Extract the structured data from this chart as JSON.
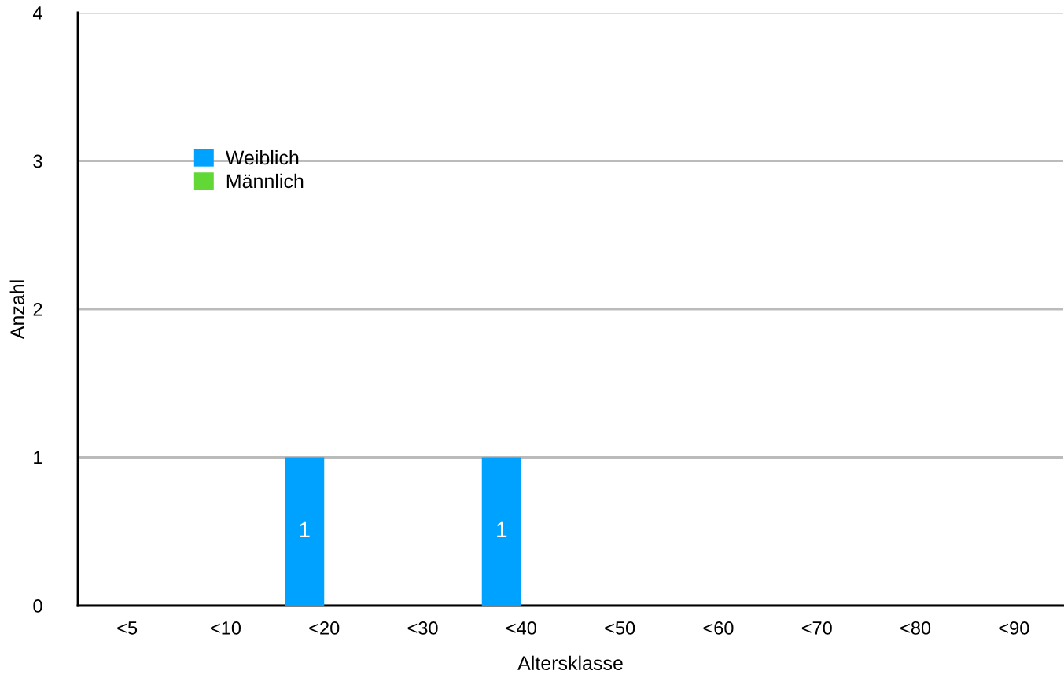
{
  "chart_data": {
    "type": "bar",
    "xlabel": "Altersklasse",
    "ylabel": "Anzahl",
    "categories": [
      "<5",
      "<10",
      "<20",
      "<30",
      "<40",
      "<50",
      "<60",
      "<70",
      "<80",
      "<90"
    ],
    "series": [
      {
        "name": "Weiblich",
        "color": "#00a2ff",
        "values": [
          0,
          0,
          1,
          0,
          1,
          0,
          0,
          0,
          0,
          0
        ],
        "value_labels": [
          null,
          null,
          "1",
          null,
          "1",
          null,
          null,
          null,
          null,
          null
        ]
      },
      {
        "name": "Männlich",
        "color": "#61d836",
        "values": [
          0,
          0,
          0,
          0,
          0,
          0,
          0,
          0,
          0,
          0
        ]
      }
    ],
    "ylim": [
      0,
      4
    ],
    "yticks": [
      0,
      1,
      2,
      3,
      4
    ],
    "grid": "y",
    "legend": "top left"
  }
}
